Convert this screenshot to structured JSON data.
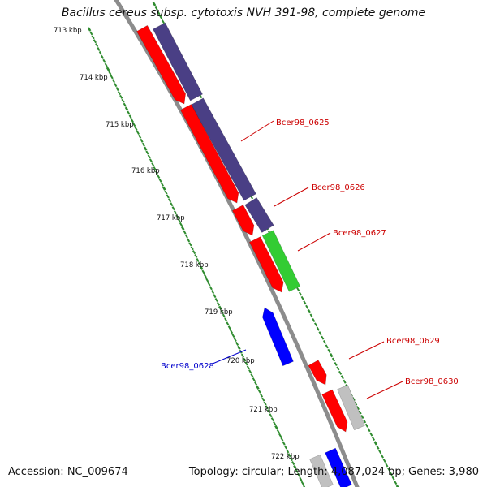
{
  "title": "Bacillus cereus subsp. cytotoxis NVH 391-98, complete genome",
  "footer": {
    "accession": "Accession: NC_009674",
    "stats": "Topology: circular; Length: 4,087,024 bp; Genes: 3,980"
  },
  "colors": {
    "backbone": "#8c8c8c",
    "ruler_tick": "#2e8b2e",
    "cds_forward": "#ff0000",
    "gene_track": "#4a3f85",
    "highlight_green": "#33cc33",
    "reverse_gene": "#0000ff",
    "other_feature": "#c0c0c0",
    "label_red": "#cc0000",
    "label_blue": "#0000cc"
  },
  "ruler": {
    "unit": "kbp",
    "ticks": [
      "713 kbp",
      "714 kbp",
      "715 kbp",
      "716 kbp",
      "717 kbp",
      "718 kbp",
      "719 kbp",
      "720 kbp",
      "721 kbp",
      "722 kbp"
    ]
  },
  "genes": [
    {
      "label": "Bcer98_0625",
      "color": "label_red"
    },
    {
      "label": "Bcer98_0626",
      "color": "label_red"
    },
    {
      "label": "Bcer98_0627",
      "color": "label_red"
    },
    {
      "label": "Bcer98_0628",
      "color": "label_blue"
    },
    {
      "label": "Bcer98_0629",
      "color": "label_red"
    },
    {
      "label": "Bcer98_0630",
      "color": "label_red"
    }
  ]
}
